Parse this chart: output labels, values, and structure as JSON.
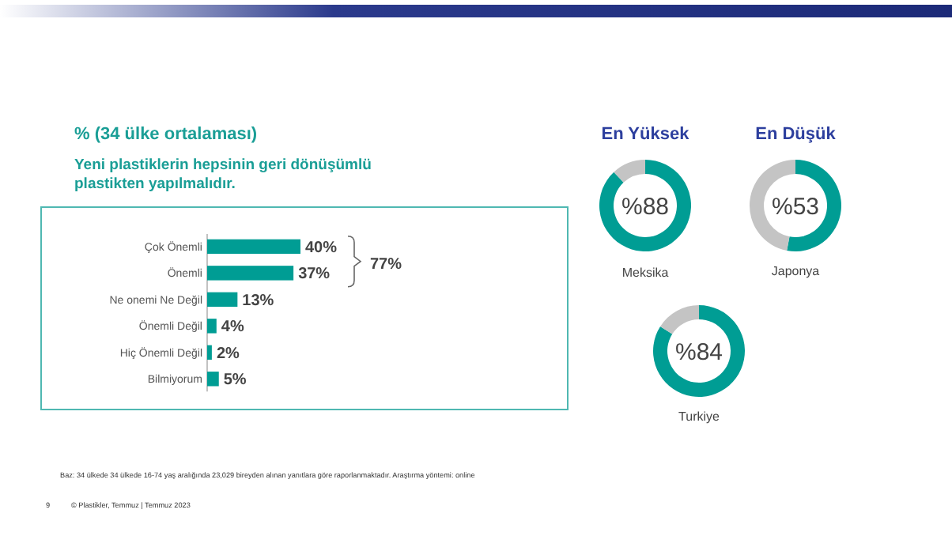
{
  "chart_data": [
    {
      "type": "bar",
      "orientation": "horizontal",
      "title": "%  (34 ülke ortalaması)",
      "subtitle": "Yeni plastiklerin hepsinin geri dönüşümlü plastikten yapılmalıdır.",
      "categories": [
        "Çok Önemli",
        "Önemli",
        "Ne onemi Ne Değil",
        "Önemli Değil",
        "Hiç Önemli Değil",
        "Bilmiyorum"
      ],
      "values": [
        40,
        37,
        13,
        4,
        2,
        5
      ],
      "color": "#009d94",
      "value_labels": [
        "40%",
        "37%",
        "13%",
        "4%",
        "2%",
        "5%"
      ],
      "annotations": [
        "77%",
        "Baz: 34 ülkede 34 ülkede 16-74 yaş aralığında 23,029 bireyden alınan yanıtlara göre raporlanmaktadır. Araştırma yöntemi: online",
        "9",
        "© Plastikler, Temmuz | Temmuz 2023"
      ]
    },
    {
      "type": "donut",
      "title": "En Yüksek",
      "subtitle": "Meksika",
      "categories": [
        null,
        null
      ],
      "values": [
        88,
        12
      ],
      "colors": [
        "#009d94",
        "#c4c4c4"
      ],
      "value_labels": [
        "%88",
        null
      ]
    },
    {
      "type": "donut",
      "title": "En Düşük",
      "subtitle": "Japonya",
      "categories": [
        null,
        null
      ],
      "values": [
        53,
        47
      ],
      "colors": [
        "#009d94",
        "#c4c4c4"
      ],
      "value_labels": [
        "%53",
        null
      ]
    },
    {
      "type": "donut",
      "subtitle": "Turkiye",
      "categories": [
        null,
        null
      ],
      "values": [
        84,
        16
      ],
      "colors": [
        "#009d94",
        "#c4c4c4"
      ],
      "value_labels": [
        "%84",
        null
      ]
    }
  ]
}
